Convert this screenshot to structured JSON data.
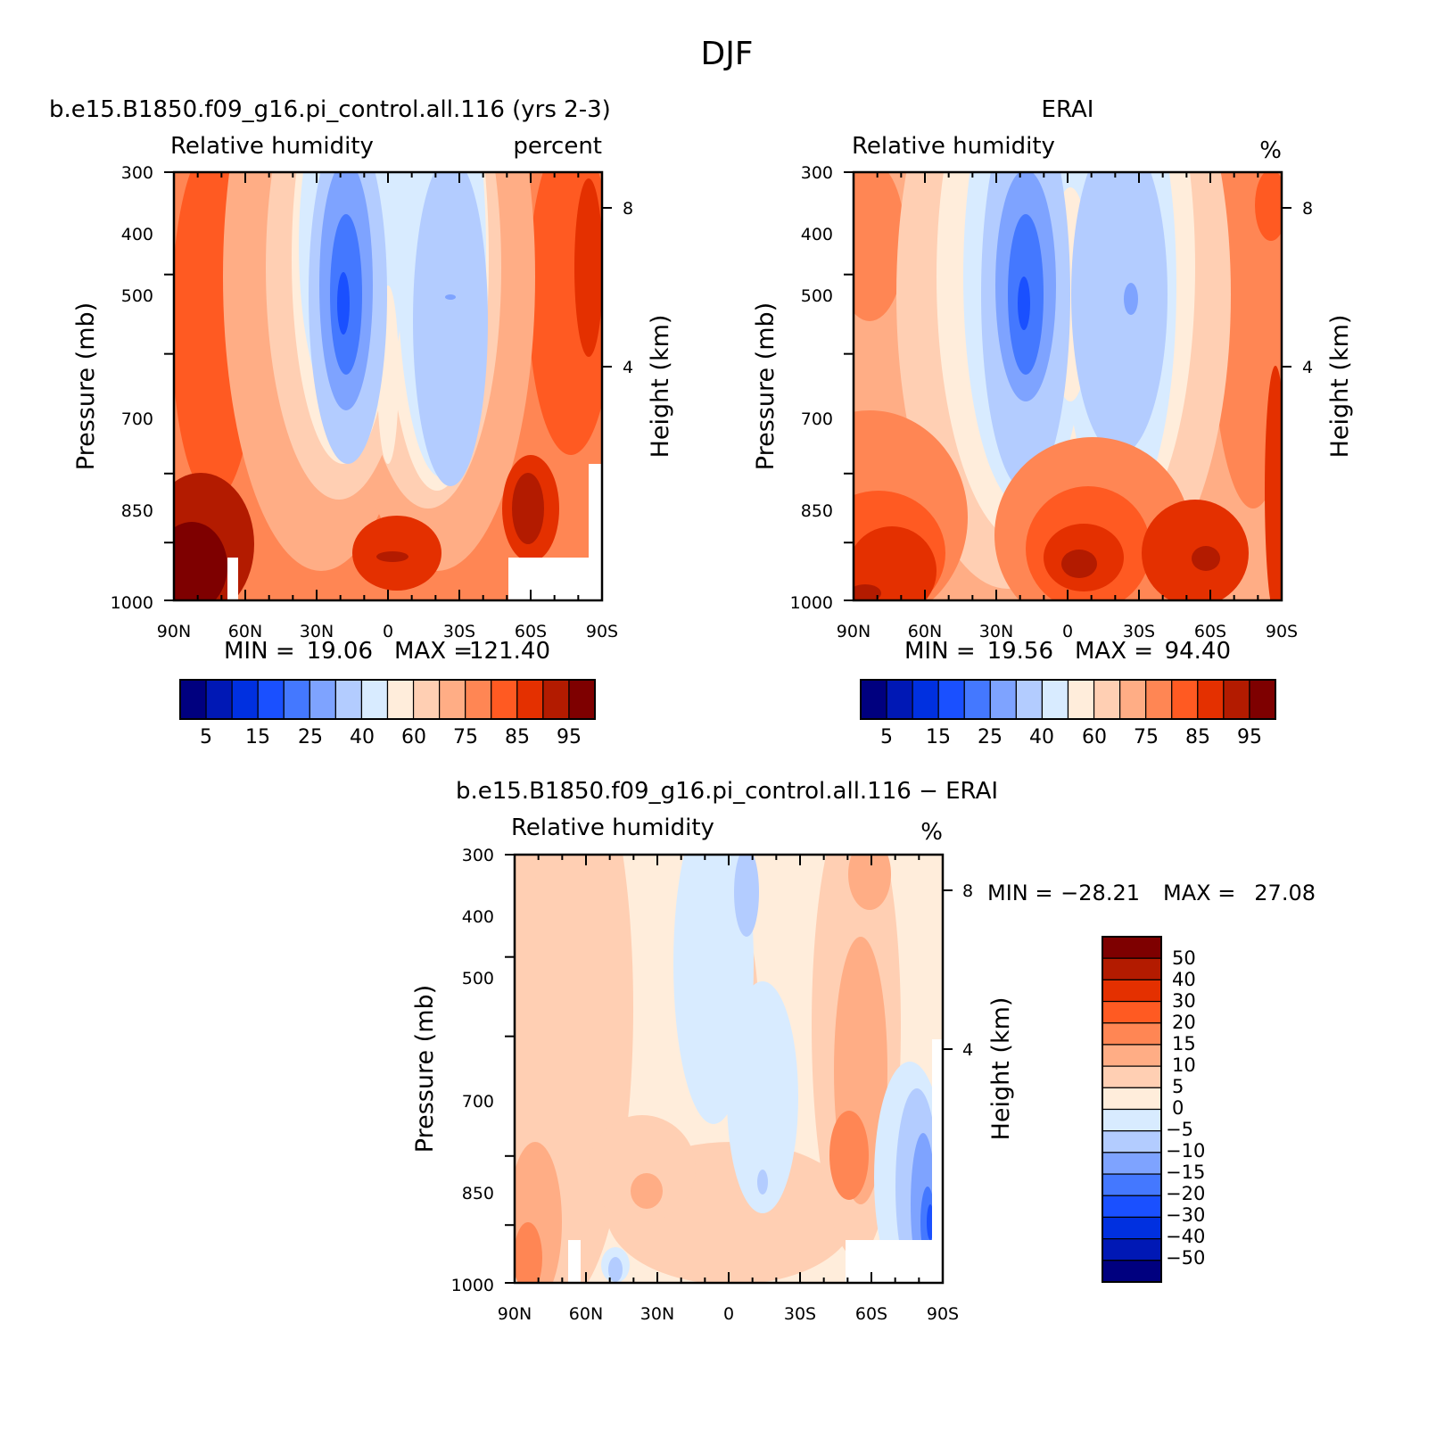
{
  "figure": {
    "title": "DJF"
  },
  "chart_data": [
    {
      "type": "contour",
      "panel": "model",
      "title": "b.e15.B1850.f09_g16.pi_control.all.116 (yrs 2-3)",
      "subtitle_left": "Relative humidity",
      "subtitle_right": "percent",
      "ylabel": "Pressure (mb)",
      "ylabel_right": "Height (km)",
      "x_ticks": [
        "90N",
        "60N",
        "30N",
        "0",
        "30S",
        "60S",
        "90S"
      ],
      "y_ticks": [
        "300",
        "400",
        "500",
        "700",
        "850",
        "1000"
      ],
      "y2_ticks": [
        "8",
        "4"
      ],
      "stats": {
        "min_label": "MIN =",
        "min": "19.06",
        "max_label": "MAX =",
        "max": "121.40"
      },
      "colorbar": {
        "orientation": "horizontal",
        "labels": [
          "5",
          "15",
          "25",
          "40",
          "60",
          "75",
          "85",
          "95"
        ],
        "colors": [
          "#00007f",
          "#0018b5",
          "#0030e0",
          "#1a50ff",
          "#4478ff",
          "#7ea3ff",
          "#b3ccff",
          "#d8ebff",
          "#ffeddb",
          "#ffcfb3",
          "#ffad85",
          "#ff8654",
          "#ff5a22",
          "#e43000",
          "#b31b00",
          "#7e0000"
        ]
      }
    },
    {
      "type": "contour",
      "panel": "obs",
      "title": "ERAI",
      "subtitle_left": "Relative humidity",
      "subtitle_right": "%",
      "ylabel": "Pressure (mb)",
      "ylabel_right": "Height (km)",
      "x_ticks": [
        "90N",
        "60N",
        "30N",
        "0",
        "30S",
        "60S",
        "90S"
      ],
      "y_ticks": [
        "300",
        "400",
        "500",
        "700",
        "850",
        "1000"
      ],
      "y2_ticks": [
        "8",
        "4"
      ],
      "stats": {
        "min_label": "MIN =",
        "min": "19.56",
        "max_label": "MAX =",
        "max": "94.40"
      },
      "colorbar": {
        "orientation": "horizontal",
        "labels": [
          "5",
          "15",
          "25",
          "40",
          "60",
          "75",
          "85",
          "95"
        ],
        "colors": [
          "#00007f",
          "#0018b5",
          "#0030e0",
          "#1a50ff",
          "#4478ff",
          "#7ea3ff",
          "#b3ccff",
          "#d8ebff",
          "#ffeddb",
          "#ffcfb3",
          "#ffad85",
          "#ff8654",
          "#ff5a22",
          "#e43000",
          "#b31b00",
          "#7e0000"
        ]
      }
    },
    {
      "type": "contour",
      "panel": "difference",
      "title": "b.e15.B1850.f09_g16.pi_control.all.116 − ERAI",
      "subtitle_left": "Relative humidity",
      "subtitle_right": "%",
      "ylabel": "Pressure (mb)",
      "ylabel_right": "Height (km)",
      "x_ticks": [
        "90N",
        "60N",
        "30N",
        "0",
        "30S",
        "60S",
        "90S"
      ],
      "y_ticks": [
        "300",
        "400",
        "500",
        "700",
        "850",
        "1000"
      ],
      "y2_ticks": [
        "8",
        "4"
      ],
      "stats": {
        "min_label": "MIN =",
        "min": "−28.21",
        "max_label": "MAX =",
        "max": "27.08"
      },
      "colorbar": {
        "orientation": "vertical",
        "labels": [
          "50",
          "40",
          "30",
          "20",
          "15",
          "10",
          "5",
          "0",
          "−5",
          "−10",
          "−15",
          "−20",
          "−30",
          "−40",
          "−50"
        ],
        "colors": [
          "#7e0000",
          "#b31b00",
          "#e43000",
          "#ff5a22",
          "#ff8654",
          "#ffad85",
          "#ffcfb3",
          "#ffeddb",
          "#d8ebff",
          "#b3ccff",
          "#7ea3ff",
          "#4478ff",
          "#1a50ff",
          "#0030e0",
          "#0018b5",
          "#00007f"
        ]
      }
    }
  ]
}
